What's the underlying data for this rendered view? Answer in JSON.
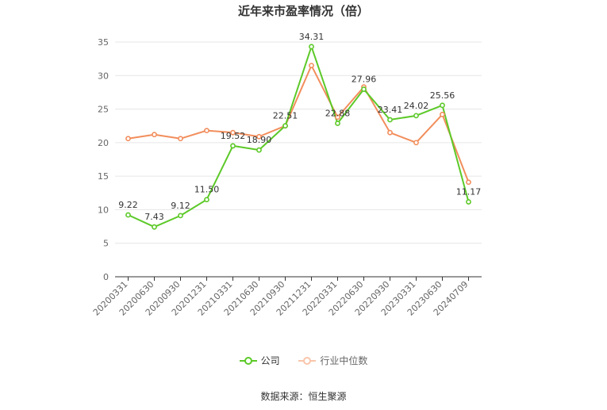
{
  "chart_data": {
    "type": "line",
    "title": "近年来市盈率情况（倍）",
    "categories": [
      "20200331",
      "20200630",
      "20200930",
      "20201231",
      "20210331",
      "20210630",
      "20210930",
      "20211231",
      "20220331",
      "20220630",
      "20220930",
      "20230331",
      "20230630",
      "20240709"
    ],
    "series": [
      {
        "name": "公司",
        "color": "#5cc928",
        "values": [
          9.22,
          7.43,
          9.12,
          11.5,
          19.52,
          18.9,
          22.51,
          34.31,
          22.88,
          27.96,
          23.41,
          24.02,
          25.56,
          11.17
        ],
        "labels": [
          "9.22",
          "7.43",
          "9.12",
          "11.50",
          "19.52",
          "18.90",
          "22.51",
          "34.31",
          "22.88",
          "27.96",
          "23.41",
          "24.02",
          "25.56",
          "11.17"
        ]
      },
      {
        "name": "行业中位数",
        "color": "#f28e5c",
        "values": [
          20.6,
          21.2,
          20.6,
          21.8,
          21.5,
          20.9,
          22.5,
          31.5,
          23.8,
          28.3,
          21.5,
          20.0,
          24.2,
          14.1
        ]
      }
    ],
    "ylim": [
      0,
      35
    ],
    "yticks": [
      0,
      5,
      10,
      15,
      20,
      25,
      30,
      35
    ],
    "grid": true,
    "legend_position": "bottom",
    "source": "数据来源：恒生聚源"
  }
}
